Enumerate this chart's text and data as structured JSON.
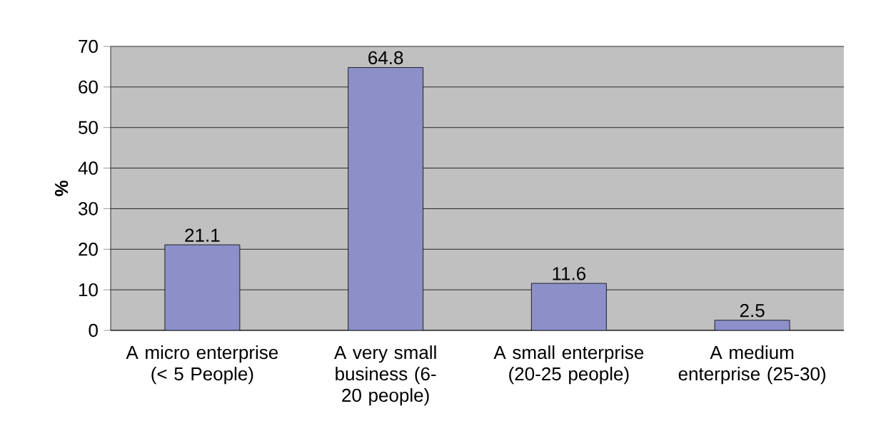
{
  "chart_data": {
    "type": "bar",
    "ylabel": "%",
    "categories": [
      "A micro enterprise (< 5 People)",
      "A very small business (6-20 people)",
      "A small enterprise (20-25 people)",
      "A medium enterprise (25-30)"
    ],
    "values": [
      21.1,
      64.8,
      11.6,
      2.5
    ],
    "color": "#8c8fc8",
    "ylim": [
      0,
      70
    ],
    "yticks": [
      0,
      10,
      20,
      30,
      40,
      50,
      60,
      70
    ],
    "grid": "y",
    "data_labels": true
  }
}
